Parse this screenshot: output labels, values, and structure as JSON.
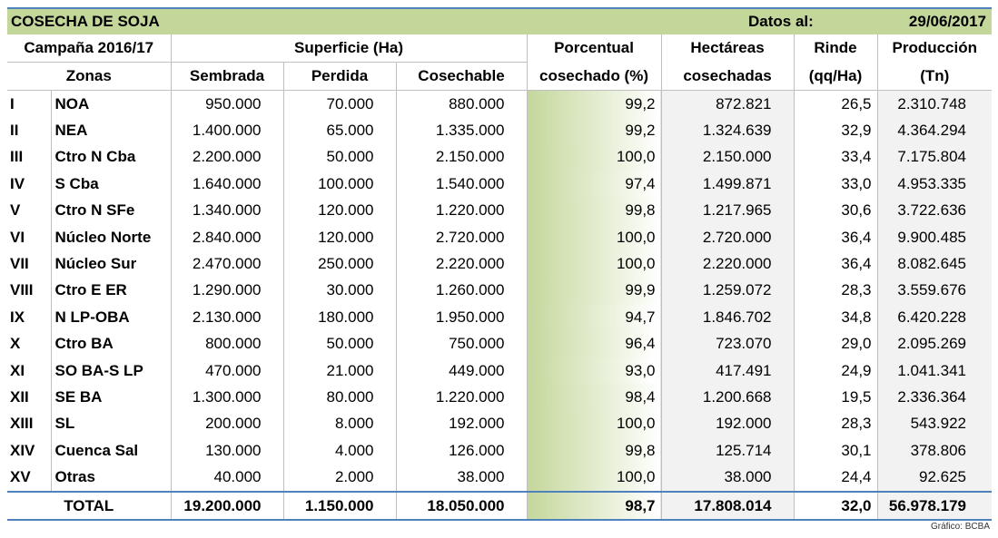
{
  "title": "COSECHA DE SOJA",
  "date_label": "Datos al:",
  "date_value": "29/06/2017",
  "headers": {
    "campaign": "Campaña 2016/17",
    "zones": "Zonas",
    "superficie": "Superficie (Ha)",
    "sembrada": "Sembrada",
    "perdida": "Perdida",
    "cosechable": "Cosechable",
    "pct_top": "Porcentual",
    "pct_bottom": "cosechado (%)",
    "hect_top": "Hectáreas",
    "hect_bottom": "cosechadas",
    "rinde_top": "Rinde",
    "rinde_bottom": "(qq/Ha)",
    "prod_top": "Producción",
    "prod_bottom": "(Tn)"
  },
  "rows": [
    {
      "num": "I",
      "zone": "NOA",
      "sembrada": "950.000",
      "perdida": "70.000",
      "cosechable": "880.000",
      "pct": "99,2",
      "pct_value": 99.2,
      "hectareas": "872.821",
      "rinde": "26,5",
      "produccion": "2.310.748"
    },
    {
      "num": "II",
      "zone": "NEA",
      "sembrada": "1.400.000",
      "perdida": "65.000",
      "cosechable": "1.335.000",
      "pct": "99,2",
      "pct_value": 99.2,
      "hectareas": "1.324.639",
      "rinde": "32,9",
      "produccion": "4.364.294"
    },
    {
      "num": "III",
      "zone": "Ctro N Cba",
      "sembrada": "2.200.000",
      "perdida": "50.000",
      "cosechable": "2.150.000",
      "pct": "100,0",
      "pct_value": 100.0,
      "hectareas": "2.150.000",
      "rinde": "33,4",
      "produccion": "7.175.804"
    },
    {
      "num": "IV",
      "zone": "S Cba",
      "sembrada": "1.640.000",
      "perdida": "100.000",
      "cosechable": "1.540.000",
      "pct": "97,4",
      "pct_value": 97.4,
      "hectareas": "1.499.871",
      "rinde": "33,0",
      "produccion": "4.953.335"
    },
    {
      "num": "V",
      "zone": "Ctro N SFe",
      "sembrada": "1.340.000",
      "perdida": "120.000",
      "cosechable": "1.220.000",
      "pct": "99,8",
      "pct_value": 99.8,
      "hectareas": "1.217.965",
      "rinde": "30,6",
      "produccion": "3.722.636"
    },
    {
      "num": "VI",
      "zone": "Núcleo Norte",
      "sembrada": "2.840.000",
      "perdida": "120.000",
      "cosechable": "2.720.000",
      "pct": "100,0",
      "pct_value": 100.0,
      "hectareas": "2.720.000",
      "rinde": "36,4",
      "produccion": "9.900.485"
    },
    {
      "num": "VII",
      "zone": "Núcleo Sur",
      "sembrada": "2.470.000",
      "perdida": "250.000",
      "cosechable": "2.220.000",
      "pct": "100,0",
      "pct_value": 100.0,
      "hectareas": "2.220.000",
      "rinde": "36,4",
      "produccion": "8.082.645"
    },
    {
      "num": "VIII",
      "zone": "Ctro E ER",
      "sembrada": "1.290.000",
      "perdida": "30.000",
      "cosechable": "1.260.000",
      "pct": "99,9",
      "pct_value": 99.9,
      "hectareas": "1.259.072",
      "rinde": "28,3",
      "produccion": "3.559.676"
    },
    {
      "num": "IX",
      "zone": "N LP-OBA",
      "sembrada": "2.130.000",
      "perdida": "180.000",
      "cosechable": "1.950.000",
      "pct": "94,7",
      "pct_value": 94.7,
      "hectareas": "1.846.702",
      "rinde": "34,8",
      "produccion": "6.420.228"
    },
    {
      "num": "X",
      "zone": "Ctro BA",
      "sembrada": "800.000",
      "perdida": "50.000",
      "cosechable": "750.000",
      "pct": "96,4",
      "pct_value": 96.4,
      "hectareas": "723.070",
      "rinde": "29,0",
      "produccion": "2.095.269"
    },
    {
      "num": "XI",
      "zone": "SO BA-S LP",
      "sembrada": "470.000",
      "perdida": "21.000",
      "cosechable": "449.000",
      "pct": "93,0",
      "pct_value": 93.0,
      "hectareas": "417.491",
      "rinde": "24,9",
      "produccion": "1.041.341"
    },
    {
      "num": "XII",
      "zone": "SE BA",
      "sembrada": "1.300.000",
      "perdida": "80.000",
      "cosechable": "1.220.000",
      "pct": "98,4",
      "pct_value": 98.4,
      "hectareas": "1.200.668",
      "rinde": "19,5",
      "produccion": "2.336.364"
    },
    {
      "num": "XIII",
      "zone": "SL",
      "sembrada": "200.000",
      "perdida": "8.000",
      "cosechable": "192.000",
      "pct": "100,0",
      "pct_value": 100.0,
      "hectareas": "192.000",
      "rinde": "28,3",
      "produccion": "543.922"
    },
    {
      "num": "XIV",
      "zone": "Cuenca Sal",
      "sembrada": "130.000",
      "perdida": "4.000",
      "cosechable": "126.000",
      "pct": "99,8",
      "pct_value": 99.8,
      "hectareas": "125.714",
      "rinde": "30,1",
      "produccion": "378.806"
    },
    {
      "num": "XV",
      "zone": "Otras",
      "sembrada": "40.000",
      "perdida": "2.000",
      "cosechable": "38.000",
      "pct": "100,0",
      "pct_value": 100.0,
      "hectareas": "38.000",
      "rinde": "24,4",
      "produccion": "92.625"
    }
  ],
  "total": {
    "label": "TOTAL",
    "sembrada": "19.200.000",
    "perdida": "1.150.000",
    "cosechable": "18.050.000",
    "pct": "98,7",
    "pct_value": 98.7,
    "hectareas": "17.808.014",
    "rinde": "32,0",
    "produccion": "56.978.179"
  },
  "credit": "Gráfico: BCBA",
  "colors": {
    "title_bg": "#c4d79b",
    "accent_line": "#4f81bd",
    "pct_gradient_start": "#c4d79b",
    "row_grey": "#f2f2f2"
  }
}
